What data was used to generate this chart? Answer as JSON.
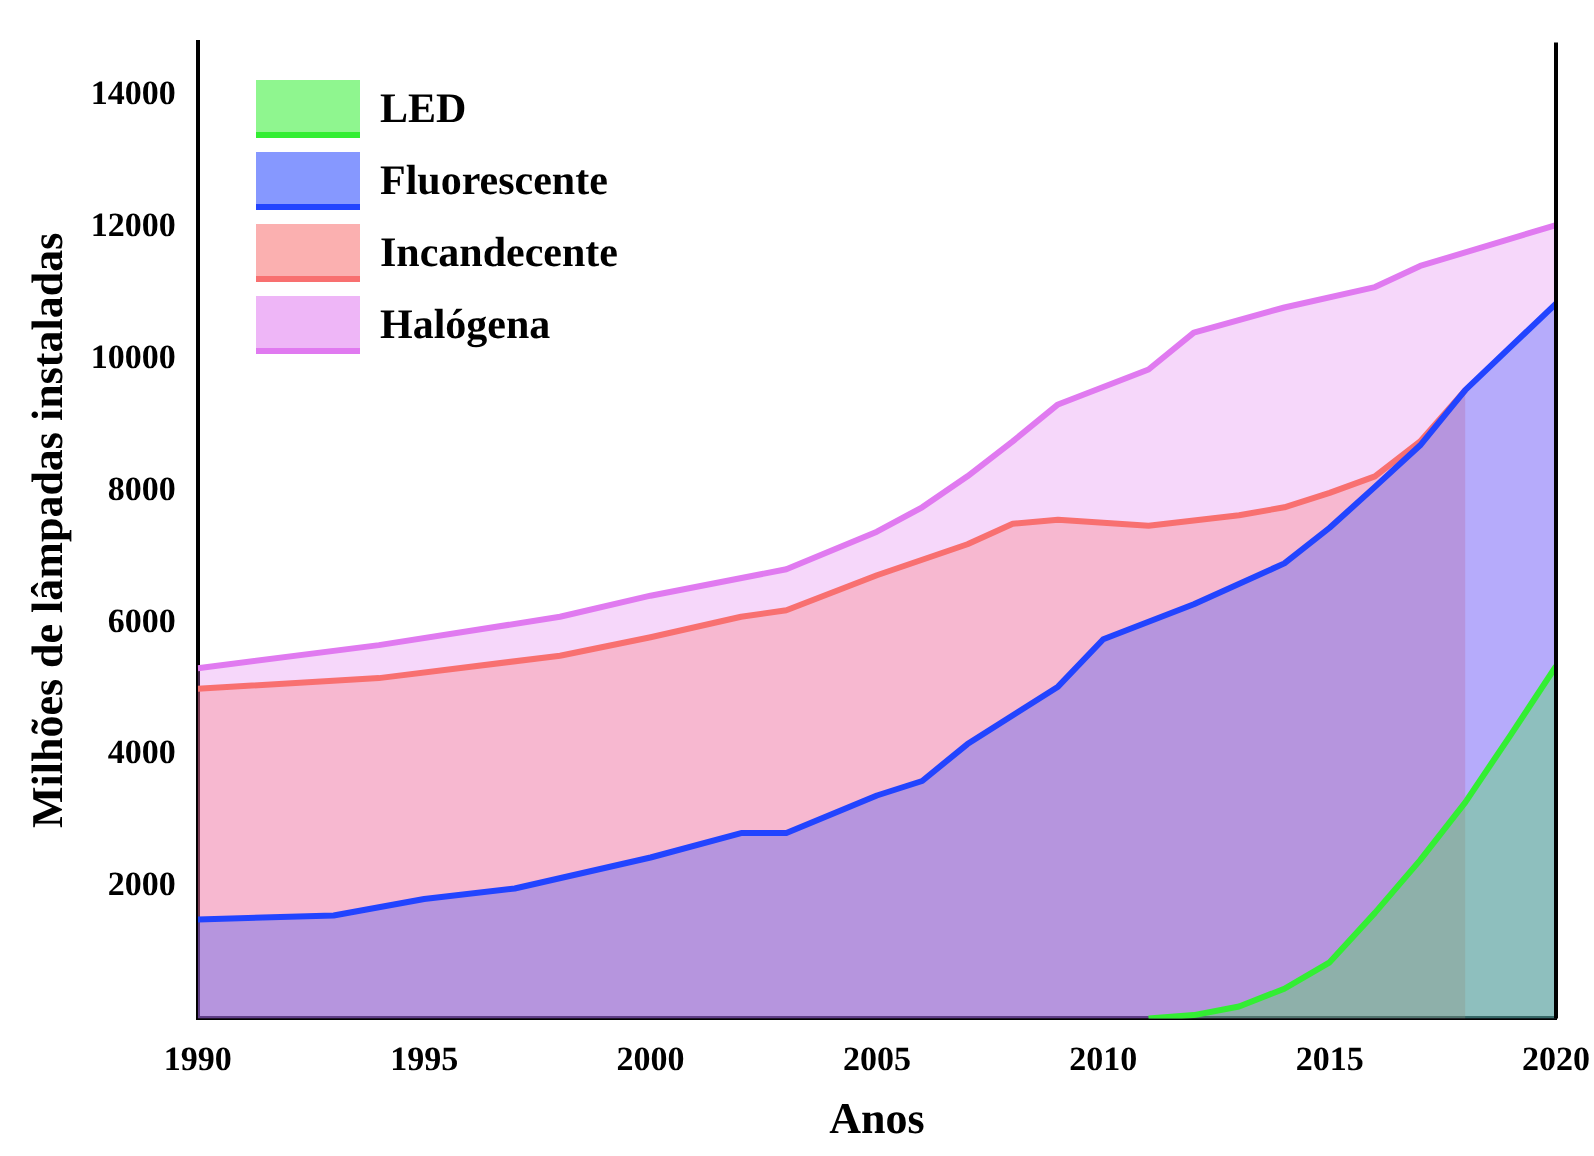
{
  "chart_data": {
    "type": "area",
    "xlabel": "Anos",
    "ylabel": "Milhões de lâmpadas instaladas",
    "xlim": [
      1990,
      2020
    ],
    "xticks": [
      1990,
      1995,
      2000,
      2005,
      2010,
      2015,
      2020
    ],
    "ylim": [
      0,
      14800
    ],
    "yticks": [
      2000,
      4000,
      6000,
      8000,
      10000,
      12000,
      14000
    ],
    "grid": false,
    "legend": "top left",
    "series": [
      {
        "name": "LED",
        "color": "#33ee33",
        "x": [
          2011,
          2012,
          2013,
          2014,
          2015,
          2016,
          2017,
          2018,
          2019,
          2020
        ],
        "values": [
          0,
          50,
          180,
          450,
          850,
          1600,
          2400,
          3280,
          4300,
          5340
        ]
      },
      {
        "name": "Fluorescente",
        "color": "#2244ff",
        "x": [
          1990,
          1993,
          1995,
          1997,
          2000,
          2002,
          2003,
          2005,
          2006,
          2007,
          2009,
          2010,
          2012,
          2014,
          2015,
          2016,
          2017,
          2018,
          2020
        ],
        "values": [
          1500,
          1560,
          1810,
          1970,
          2440,
          2810,
          2810,
          3380,
          3600,
          4160,
          5030,
          5750,
          6280,
          6900,
          7440,
          8060,
          8690,
          9530,
          10840
        ]
      },
      {
        "name": "Incandecente",
        "color": "#f87070",
        "x": [
          1990,
          1994,
          1998,
          2000,
          2002,
          2003,
          2005,
          2007,
          2008,
          2009,
          2011,
          2013,
          2014,
          2015,
          2016,
          2017,
          2018
        ],
        "values": [
          5000,
          5160,
          5500,
          5780,
          6090,
          6190,
          6720,
          7190,
          7500,
          7560,
          7470,
          7630,
          7750,
          7970,
          8220,
          8750,
          9530
        ]
      },
      {
        "name": "Halógena",
        "color": "#e07af0",
        "x": [
          1990,
          1994,
          1998,
          2000,
          2003,
          2005,
          2006,
          2007,
          2008,
          2009,
          2011,
          2012,
          2014,
          2016,
          2017,
          2020
        ],
        "values": [
          5310,
          5660,
          6090,
          6410,
          6810,
          7380,
          7750,
          8220,
          8750,
          9310,
          9840,
          10400,
          10780,
          11090,
          11410,
          12030
        ]
      }
    ]
  }
}
